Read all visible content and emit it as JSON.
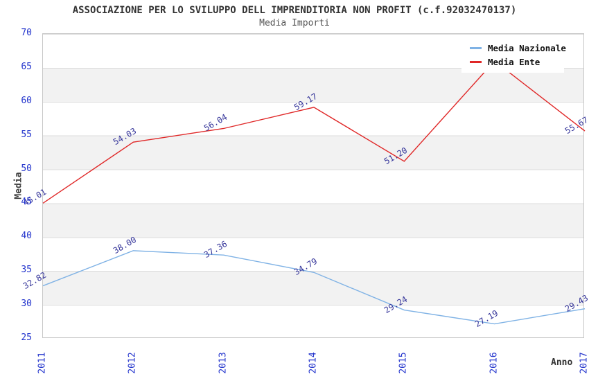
{
  "header": {
    "title": "ASSOCIAZIONE PER LO SVILUPPO DELL IMPRENDITORIA NON PROFIT (c.f.92032470137)",
    "subtitle": "Media Importi"
  },
  "axes": {
    "y_title": "Media",
    "x_title": "Anno",
    "y_ticks": [
      "70",
      "65",
      "60",
      "55",
      "50",
      "45",
      "40",
      "35",
      "30",
      "25"
    ],
    "x_ticks": [
      "2011",
      "2012",
      "2013",
      "2014",
      "2015",
      "2016",
      "2017"
    ],
    "tick_color": "#2233cc"
  },
  "legend": {
    "items": [
      {
        "label": "Media Nazionale",
        "color": "#7fb2e5"
      },
      {
        "label": "Media Ente",
        "color": "#e02828"
      }
    ]
  },
  "colors": {
    "band_gray": "#f2f2f2",
    "grid_line": "#dcdcdc",
    "plot_border": "#c6c6c6",
    "data_label": "#333399",
    "title": "#333333",
    "subtitle": "#555555"
  },
  "chart_data": {
    "type": "line",
    "title": "ASSOCIAZIONE PER LO SVILUPPO DELL IMPRENDITORIA NON PROFIT (c.f.92032470137)",
    "subtitle": "Media Importi",
    "xlabel": "Anno",
    "ylabel": "Media",
    "x": [
      "2011",
      "2012",
      "2013",
      "2014",
      "2015",
      "2016",
      "2017"
    ],
    "ylim": [
      25,
      70
    ],
    "grid": "horizontal gridlines every 5 units, alternating white/gray bands",
    "legend_position": "top-right",
    "series": [
      {
        "name": "Media Nazionale",
        "color": "#7fb2e5",
        "values": [
          32.82,
          38.0,
          37.36,
          34.79,
          29.24,
          27.19,
          29.43
        ],
        "labels": [
          "32.82",
          "38.00",
          "37.36",
          "34.79",
          "29.24",
          "27.19",
          "29.43"
        ]
      },
      {
        "name": "Media Ente",
        "color": "#e02828",
        "values": [
          45.01,
          54.03,
          56.04,
          59.17,
          51.2,
          66.0,
          55.67
        ],
        "labels": [
          "45.01",
          "54.03",
          "56.04",
          "59.17",
          "51.20",
          "",
          "55.67"
        ],
        "note": "2016 data label hidden behind legend box; value estimated from line geometry"
      }
    ]
  }
}
